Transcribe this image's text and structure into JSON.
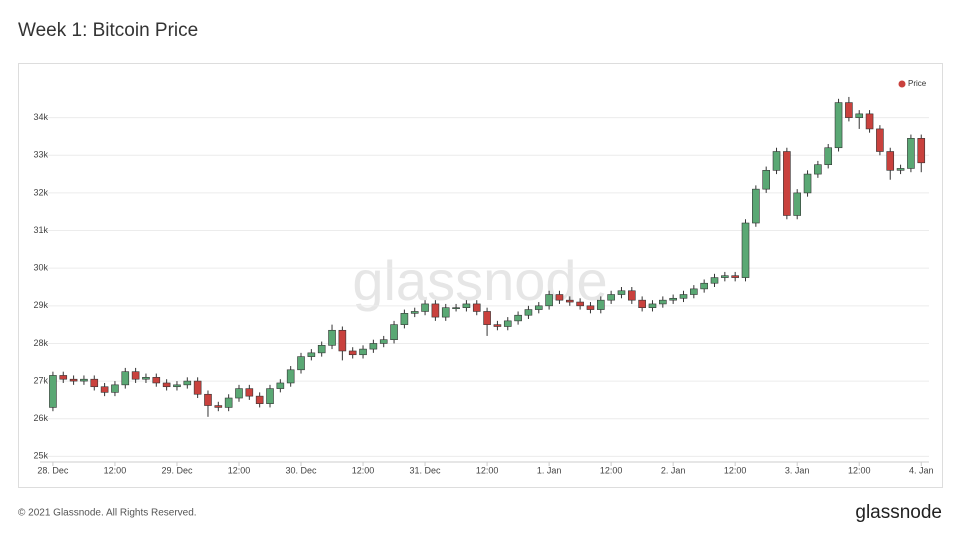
{
  "chart_data": {
    "type": "candlestick",
    "title": "Week 1: Bitcoin Price",
    "watermark": "glassnode",
    "footer": "© 2021 Glassnode. All Rights Reserved.",
    "brand": "glassnode",
    "series": [
      {
        "name": "Price",
        "color": "#c9413d",
        "up_color": "#5aa874",
        "down_color": "#c9413d",
        "x": [
          0,
          2,
          4,
          6,
          8,
          10,
          12,
          14,
          16,
          18,
          20,
          22,
          24,
          26,
          28,
          30,
          32,
          34,
          36,
          38,
          40,
          42,
          44,
          46,
          48,
          50,
          52,
          54,
          56,
          58,
          60,
          62,
          64,
          66,
          68,
          70,
          72,
          74,
          76,
          78,
          80,
          82,
          84,
          86,
          88,
          90,
          92,
          94,
          96,
          98,
          100,
          102,
          104,
          106,
          108,
          110,
          112,
          114,
          116,
          118,
          120,
          122,
          124,
          126,
          128,
          130,
          132,
          134,
          136,
          138,
          140,
          142,
          144,
          146,
          148,
          150,
          152,
          154,
          156,
          158,
          160,
          162,
          164,
          166,
          168
        ],
        "open": [
          26300,
          27150,
          27050,
          27000,
          27050,
          26850,
          26700,
          26900,
          27250,
          27050,
          27100,
          26950,
          26850,
          26900,
          27000,
          26650,
          26350,
          26300,
          26550,
          26800,
          26600,
          26400,
          26800,
          26950,
          27300,
          27650,
          27750,
          27950,
          28350,
          27800,
          27700,
          27850,
          28000,
          28100,
          28500,
          28800,
          28850,
          29050,
          28700,
          28950,
          28950,
          29050,
          28850,
          28500,
          28450,
          28600,
          28750,
          28900,
          29000,
          29300,
          29150,
          29100,
          29000,
          28900,
          29150,
          29300,
          29400,
          29150,
          28950,
          29050,
          29150,
          29200,
          29300,
          29450,
          29600,
          29750,
          29800,
          29750,
          31200,
          32100,
          32600,
          33100,
          31400,
          32000,
          32500,
          32750,
          33200,
          34400,
          34000,
          34100,
          33700,
          33100,
          32600,
          32650,
          33450
        ],
        "high": [
          27250,
          27250,
          27150,
          27150,
          27150,
          26950,
          27000,
          27350,
          27350,
          27200,
          27200,
          27050,
          27000,
          27100,
          27100,
          26750,
          26450,
          26650,
          26900,
          26900,
          26700,
          26900,
          27050,
          27400,
          27750,
          27850,
          28050,
          28500,
          28450,
          27900,
          27950,
          28100,
          28200,
          28600,
          28900,
          28950,
          29150,
          29150,
          29050,
          29050,
          29150,
          29150,
          28950,
          28600,
          28700,
          28850,
          29000,
          29100,
          29400,
          29400,
          29250,
          29200,
          29100,
          29250,
          29400,
          29500,
          29500,
          29250,
          29150,
          29250,
          29300,
          29400,
          29550,
          29700,
          29850,
          29900,
          29900,
          31300,
          32200,
          32700,
          33200,
          33200,
          32100,
          32600,
          32850,
          33300,
          34500,
          34550,
          34200,
          34200,
          33800,
          33200,
          32750,
          33550,
          33550
        ],
        "low": [
          26200,
          26950,
          26900,
          26900,
          26750,
          26600,
          26600,
          26800,
          26950,
          26950,
          26850,
          26750,
          26750,
          26800,
          26550,
          26050,
          26200,
          26200,
          26450,
          26500,
          26300,
          26300,
          26700,
          26850,
          27200,
          27550,
          27650,
          27850,
          27550,
          27600,
          27600,
          27750,
          27900,
          28000,
          28400,
          28700,
          28750,
          28600,
          28600,
          28850,
          28850,
          28750,
          28200,
          28350,
          28350,
          28500,
          28650,
          28800,
          28900,
          29050,
          29000,
          28900,
          28800,
          28800,
          29050,
          29200,
          29050,
          28850,
          28850,
          28950,
          29050,
          29100,
          29200,
          29350,
          29500,
          29650,
          29650,
          29650,
          31100,
          32000,
          32500,
          31300,
          31300,
          31900,
          32400,
          32650,
          33100,
          33900,
          33700,
          33600,
          33000,
          32350,
          32500,
          32550,
          32550
        ],
        "close": [
          27150,
          27050,
          27000,
          27050,
          26850,
          26700,
          26900,
          27250,
          27050,
          27100,
          26950,
          26850,
          26900,
          27000,
          26650,
          26350,
          26300,
          26550,
          26800,
          26600,
          26400,
          26800,
          26950,
          27300,
          27650,
          27750,
          27950,
          28350,
          27800,
          27700,
          27850,
          28000,
          28100,
          28500,
          28800,
          28850,
          29050,
          28700,
          28950,
          28950,
          29050,
          28850,
          28500,
          28450,
          28600,
          28750,
          28900,
          29000,
          29300,
          29150,
          29100,
          29000,
          28900,
          29150,
          29300,
          29400,
          29150,
          28950,
          29050,
          29150,
          29200,
          29300,
          29450,
          29600,
          29750,
          29800,
          29750,
          31200,
          32100,
          32600,
          33100,
          31400,
          32000,
          32500,
          32750,
          33200,
          34400,
          34000,
          34100,
          33700,
          33100,
          32600,
          32650,
          33450,
          32800
        ]
      }
    ],
    "xlim": [
      -2.5,
      169.5
    ],
    "xticks": [
      {
        "value": 0,
        "label": "28. Dec"
      },
      {
        "value": 12,
        "label": "12:00"
      },
      {
        "value": 24,
        "label": "29. Dec"
      },
      {
        "value": 36,
        "label": "12:00"
      },
      {
        "value": 48,
        "label": "30. Dec"
      },
      {
        "value": 60,
        "label": "12:00"
      },
      {
        "value": 72,
        "label": "31. Dec"
      },
      {
        "value": 84,
        "label": "12:00"
      },
      {
        "value": 96,
        "label": "1. Jan"
      },
      {
        "value": 108,
        "label": "12:00"
      },
      {
        "value": 120,
        "label": "2. Jan"
      },
      {
        "value": 132,
        "label": "12:00"
      },
      {
        "value": 144,
        "label": "3. Jan"
      },
      {
        "value": 156,
        "label": "12:00"
      },
      {
        "value": 168,
        "label": "4. Jan"
      }
    ],
    "ylim": [
      24850,
      35000
    ],
    "yticks": [
      {
        "value": 25000,
        "label": "25k"
      },
      {
        "value": 26000,
        "label": "26k"
      },
      {
        "value": 27000,
        "label": "27k"
      },
      {
        "value": 28000,
        "label": "28k"
      },
      {
        "value": 29000,
        "label": "29k"
      },
      {
        "value": 30000,
        "label": "30k"
      },
      {
        "value": 31000,
        "label": "31k"
      },
      {
        "value": 32000,
        "label": "32k"
      },
      {
        "value": 33000,
        "label": "33k"
      },
      {
        "value": 34000,
        "label": "34k"
      }
    ],
    "grid": true,
    "legend": "top-right"
  }
}
